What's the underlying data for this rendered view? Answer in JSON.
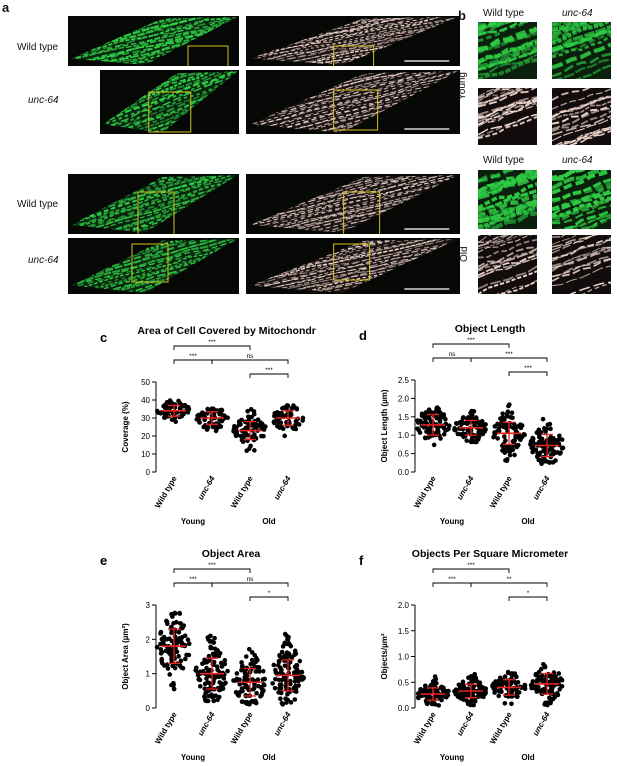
{
  "panel_a": {
    "label": "a",
    "rows": [
      {
        "label": "Wild type",
        "italic": false
      },
      {
        "label": "unc-64",
        "italic": true
      },
      {
        "label": "Wild type",
        "italic": false
      },
      {
        "label": "unc-64",
        "italic": true
      }
    ]
  },
  "panel_b": {
    "label": "b",
    "young": {
      "label": "Young",
      "col1": "Wild type",
      "col2": "unc-64"
    },
    "old": {
      "label": "Old",
      "col1": "Wild type",
      "col2": "unc-64"
    }
  },
  "colors": {
    "fluor": "#2fcf45",
    "skeleton": "#f2d8d0",
    "box": "#d8c020",
    "mean": "#e8231e",
    "dot": "#000000"
  },
  "chart_data": [
    {
      "id": "c",
      "label": "c",
      "type": "scatter",
      "title": "Area of Cell Covered by Mitochondria",
      "ylabel": "Coverage (%)",
      "ylim": [
        0,
        50
      ],
      "yticks": [
        0,
        10,
        20,
        30,
        40,
        50
      ],
      "categories": [
        "Wild type",
        "unc-64",
        "Wild type",
        "unc-64"
      ],
      "groups": [
        "Young",
        "Old"
      ],
      "series": [
        {
          "mean": 34,
          "sd": 3,
          "min": 27,
          "max": 40,
          "n": 60
        },
        {
          "mean": 30,
          "sd": 3.5,
          "min": 22,
          "max": 36,
          "n": 60
        },
        {
          "mean": 23,
          "sd": 5,
          "min": 9,
          "max": 35,
          "n": 70
        },
        {
          "mean": 30,
          "sd": 4,
          "min": 20,
          "max": 38,
          "n": 60
        }
      ],
      "brackets": [
        {
          "from": 0,
          "to": 2,
          "text": "***",
          "level": 2
        },
        {
          "from": 0,
          "to": 1,
          "text": "***",
          "level": 1
        },
        {
          "from": 1,
          "to": 3,
          "text": "ns",
          "level": 1
        },
        {
          "from": 2,
          "to": 3,
          "text": "***",
          "level": 0
        }
      ]
    },
    {
      "id": "d",
      "label": "d",
      "type": "scatter",
      "title": "Object Length",
      "ylabel": "Object Length (µm)",
      "ylim": [
        0,
        2.5
      ],
      "yticks": [
        "0.0",
        "0.5",
        "1.0",
        "1.5",
        "2.0",
        "2.5"
      ],
      "categories": [
        "Wild type",
        "unc-64",
        "Wild type",
        "unc-64"
      ],
      "groups": [
        "Young",
        "Old"
      ],
      "series": [
        {
          "mean": 1.28,
          "sd": 0.28,
          "min": 0.65,
          "max": 2.2,
          "n": 90
        },
        {
          "mean": 1.2,
          "sd": 0.2,
          "min": 0.8,
          "max": 1.7,
          "n": 80
        },
        {
          "mean": 1.05,
          "sd": 0.3,
          "min": 0.3,
          "max": 1.9,
          "n": 90
        },
        {
          "mean": 0.72,
          "sd": 0.3,
          "min": 0.2,
          "max": 1.8,
          "n": 100
        }
      ],
      "brackets": [
        {
          "from": 0,
          "to": 2,
          "text": "***",
          "level": 2
        },
        {
          "from": 0,
          "to": 1,
          "text": "ns",
          "level": 1
        },
        {
          "from": 1,
          "to": 3,
          "text": "***",
          "level": 1
        },
        {
          "from": 2,
          "to": 3,
          "text": "***",
          "level": 0
        }
      ]
    },
    {
      "id": "e",
      "label": "e",
      "type": "scatter",
      "title": "Object Area",
      "ylabel": "Object Area (µm²)",
      "ylim": [
        0,
        3
      ],
      "yticks": [
        0,
        1,
        2,
        3
      ],
      "categories": [
        "Wild type",
        "unc-64",
        "Wild type",
        "unc-64"
      ],
      "groups": [
        "Young",
        "Old"
      ],
      "series": [
        {
          "mean": 1.8,
          "sd": 0.5,
          "min": 0.5,
          "max": 2.85,
          "n": 110
        },
        {
          "mean": 1.0,
          "sd": 0.45,
          "min": 0.2,
          "max": 2.6,
          "n": 110
        },
        {
          "mean": 0.75,
          "sd": 0.4,
          "min": 0.1,
          "max": 2.3,
          "n": 90
        },
        {
          "mean": 0.95,
          "sd": 0.45,
          "min": 0.1,
          "max": 2.4,
          "n": 110
        }
      ],
      "brackets": [
        {
          "from": 0,
          "to": 2,
          "text": "***",
          "level": 2
        },
        {
          "from": 0,
          "to": 1,
          "text": "***",
          "level": 1
        },
        {
          "from": 1,
          "to": 3,
          "text": "ns",
          "level": 1
        },
        {
          "from": 2,
          "to": 3,
          "text": "*",
          "level": 0
        }
      ]
    },
    {
      "id": "f",
      "label": "f",
      "type": "scatter",
      "title": "Objects Per Square Micrometer",
      "ylabel": "Objects/µm²",
      "ylim": [
        0,
        2
      ],
      "yticks": [
        "0.0",
        "0.5",
        "1.0",
        "1.5",
        "2.0"
      ],
      "categories": [
        "Wild type",
        "unc-64",
        "Wild type",
        "unc-64"
      ],
      "groups": [
        "Young",
        "Old"
      ],
      "series": [
        {
          "mean": 0.27,
          "sd": 0.12,
          "min": 0.05,
          "max": 0.82,
          "n": 80
        },
        {
          "mean": 0.33,
          "sd": 0.13,
          "min": 0.05,
          "max": 1.05,
          "n": 90
        },
        {
          "mean": 0.4,
          "sd": 0.15,
          "min": 0.05,
          "max": 0.95,
          "n": 80
        },
        {
          "mean": 0.47,
          "sd": 0.2,
          "min": 0.05,
          "max": 1.55,
          "n": 90
        }
      ],
      "brackets": [
        {
          "from": 0,
          "to": 2,
          "text": "***",
          "level": 2
        },
        {
          "from": 0,
          "to": 1,
          "text": "***",
          "level": 1
        },
        {
          "from": 1,
          "to": 3,
          "text": "**",
          "level": 1
        },
        {
          "from": 2,
          "to": 3,
          "text": "*",
          "level": 0
        }
      ]
    }
  ]
}
